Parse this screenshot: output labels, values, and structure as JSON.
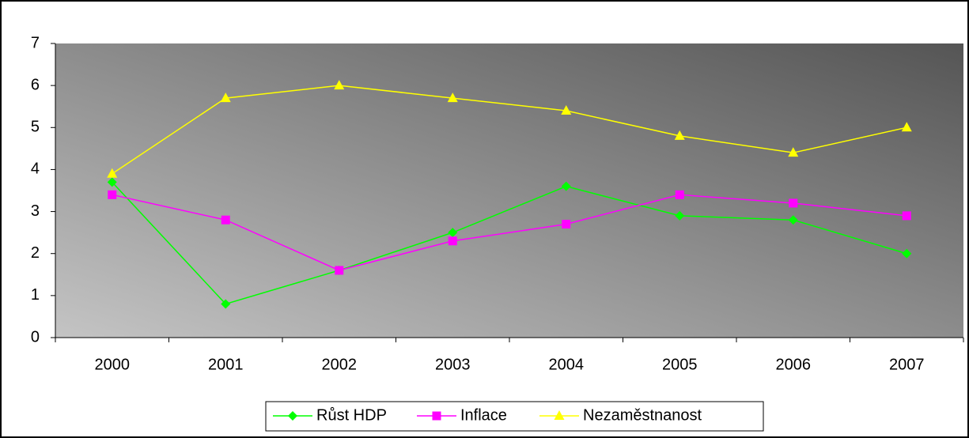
{
  "chart_data": {
    "type": "line",
    "categories": [
      "2000",
      "2001",
      "2002",
      "2003",
      "2004",
      "2005",
      "2006",
      "2007"
    ],
    "series": [
      {
        "name": "Růst HDP",
        "color": "#00ff00",
        "marker": "diamond",
        "values": [
          3.7,
          0.8,
          1.6,
          2.5,
          3.6,
          2.9,
          2.8,
          2.0
        ]
      },
      {
        "name": "Inflace",
        "color": "#ff00ff",
        "marker": "square",
        "values": [
          3.4,
          2.8,
          1.6,
          2.3,
          2.7,
          3.4,
          3.2,
          2.9
        ]
      },
      {
        "name": "Nezaměstnanost",
        "color": "#ffff00",
        "marker": "triangle",
        "values": [
          3.9,
          5.7,
          6.0,
          5.7,
          5.4,
          4.8,
          4.4,
          5.0
        ]
      }
    ],
    "ylim": [
      0,
      7
    ],
    "yticks": [
      0,
      1,
      2,
      3,
      4,
      5,
      6,
      7
    ],
    "legend": "bottom"
  }
}
